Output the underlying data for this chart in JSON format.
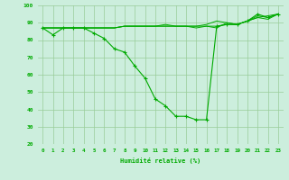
{
  "line1": {
    "x": [
      0,
      1,
      2,
      3,
      4,
      5,
      6,
      7,
      8,
      9,
      10,
      11,
      12,
      13,
      14,
      15,
      16,
      17,
      18,
      19,
      20,
      21,
      22,
      23
    ],
    "y": [
      87,
      83,
      87,
      87,
      87,
      84,
      81,
      75,
      73,
      65,
      58,
      46,
      42,
      36,
      36,
      34,
      34,
      88,
      89,
      89,
      91,
      95,
      93,
      95
    ]
  },
  "line2": {
    "x": [
      0,
      1,
      2,
      3,
      4,
      5,
      6,
      7,
      8,
      9,
      10,
      11,
      12,
      13,
      14,
      15,
      16,
      17,
      18,
      19,
      20,
      21,
      22,
      23
    ],
    "y": [
      87,
      87,
      87,
      87,
      87,
      87,
      87,
      87,
      88,
      88,
      88,
      88,
      88,
      88,
      88,
      88,
      88,
      88,
      89,
      89,
      91,
      94,
      93,
      95
    ]
  },
  "line3": {
    "x": [
      0,
      1,
      2,
      3,
      4,
      5,
      6,
      7,
      8,
      9,
      10,
      11,
      12,
      13,
      14,
      15,
      16,
      17,
      18,
      19,
      20,
      21,
      22,
      23
    ],
    "y": [
      87,
      87,
      87,
      87,
      87,
      87,
      87,
      87,
      88,
      88,
      88,
      88,
      89,
      88,
      88,
      88,
      89,
      91,
      90,
      89,
      91,
      93,
      94,
      95
    ]
  },
  "line4": {
    "x": [
      0,
      1,
      2,
      3,
      4,
      5,
      6,
      7,
      8,
      9,
      10,
      11,
      12,
      13,
      14,
      15,
      16,
      17,
      18,
      19,
      20,
      21,
      22,
      23
    ],
    "y": [
      87,
      87,
      87,
      87,
      87,
      87,
      87,
      87,
      88,
      88,
      88,
      88,
      88,
      88,
      88,
      87,
      88,
      87,
      90,
      89,
      91,
      93,
      92,
      95
    ]
  },
  "bg_color": "#cceedd",
  "line_color": "#00aa00",
  "grid_color": "#99cc99",
  "xlabel": "Humidité relative (%)",
  "ylim": [
    20,
    100
  ],
  "xlim_min": -0.5,
  "xlim_max": 23.5,
  "yticks": [
    20,
    30,
    40,
    50,
    60,
    70,
    80,
    90,
    100
  ],
  "xticks": [
    0,
    1,
    2,
    3,
    4,
    5,
    6,
    7,
    8,
    9,
    10,
    11,
    12,
    13,
    14,
    15,
    16,
    17,
    18,
    19,
    20,
    21,
    22,
    23
  ],
  "xtick_labels": [
    "0",
    "1",
    "2",
    "3",
    "4",
    "5",
    "6",
    "7",
    "8",
    "9",
    "10",
    "11",
    "12",
    "13",
    "14",
    "15",
    "16",
    "17",
    "18",
    "19",
    "20",
    "21",
    "22",
    "23"
  ]
}
